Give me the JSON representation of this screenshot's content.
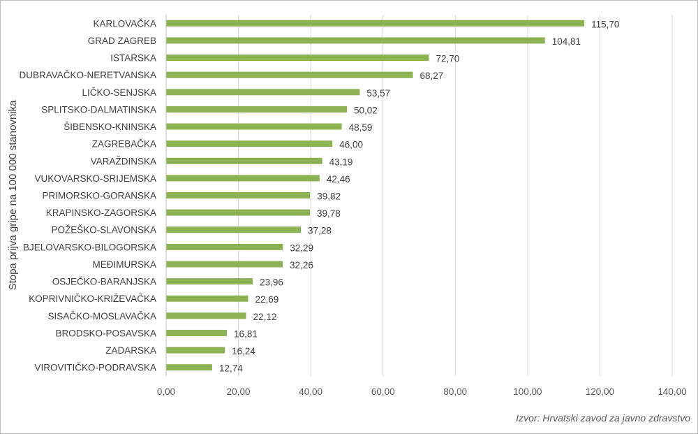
{
  "chart_data": {
    "type": "bar",
    "orientation": "horizontal",
    "title": "",
    "xlabel": "",
    "ylabel": "Stopa prijva gripe na 100 000 stanovnika",
    "xlim": [
      0,
      140
    ],
    "ticks": [
      {
        "value": 0,
        "label": "0,00"
      },
      {
        "value": 20,
        "label": "20,00"
      },
      {
        "value": 40,
        "label": "40,00"
      },
      {
        "value": 60,
        "label": "60,00"
      },
      {
        "value": 80,
        "label": "80,00"
      },
      {
        "value": 100,
        "label": "100,00"
      },
      {
        "value": 120,
        "label": "120,00"
      },
      {
        "value": 140,
        "label": "140,00"
      }
    ],
    "grid": "vertical",
    "bar_color": "#8db253",
    "items": [
      {
        "category": "KARLOVAČKA",
        "value": 115.7,
        "label": "115,70"
      },
      {
        "category": "GRAD ZAGREB",
        "value": 104.81,
        "label": "104,81"
      },
      {
        "category": "ISTARSKA",
        "value": 72.7,
        "label": "72,70"
      },
      {
        "category": "DUBRAVAČKO-NERETVANSKA",
        "value": 68.27,
        "label": "68,27"
      },
      {
        "category": "LIČKO-SENJSKA",
        "value": 53.57,
        "label": "53,57"
      },
      {
        "category": "SPLITSKO-DALMATINSKA",
        "value": 50.02,
        "label": "50,02"
      },
      {
        "category": "ŠIBENSKO-KNINSKA",
        "value": 48.59,
        "label": "48,59"
      },
      {
        "category": "ZAGREBAČKA",
        "value": 46.0,
        "label": "46,00"
      },
      {
        "category": "VARAŽDINSKA",
        "value": 43.19,
        "label": "43,19"
      },
      {
        "category": "VUKOVARSKO-SRIJEMSKA",
        "value": 42.46,
        "label": "42,46"
      },
      {
        "category": "PRIMORSKO-GORANSKA",
        "value": 39.82,
        "label": "39,82"
      },
      {
        "category": "KRAPINSKO-ZAGORSKA",
        "value": 39.78,
        "label": "39,78"
      },
      {
        "category": "POŽEŠKO-SLAVONSKA",
        "value": 37.28,
        "label": "37,28"
      },
      {
        "category": "BJELOVARSKO-BILOGORSKA",
        "value": 32.29,
        "label": "32,29"
      },
      {
        "category": "MEĐIMURSKA",
        "value": 32.26,
        "label": "32,26"
      },
      {
        "category": "OSJEČKO-BARANJSKA",
        "value": 23.96,
        "label": "23,96"
      },
      {
        "category": "KOPRIVNIČKO-KRIŽEVAČKA",
        "value": 22.69,
        "label": "22,69"
      },
      {
        "category": "SISAČKO-MOSLAVAČKA",
        "value": 22.12,
        "label": "22,12"
      },
      {
        "category": "BRODSKO-POSAVSKA",
        "value": 16.81,
        "label": "16,81"
      },
      {
        "category": "ZADARSKA",
        "value": 16.24,
        "label": "16,24"
      },
      {
        "category": "VIROVITIČKO-PODRAVSKA",
        "value": 12.74,
        "label": "12,74"
      }
    ]
  },
  "source_note": "Izvor: Hrvatski zavod za javno zdravstvo"
}
